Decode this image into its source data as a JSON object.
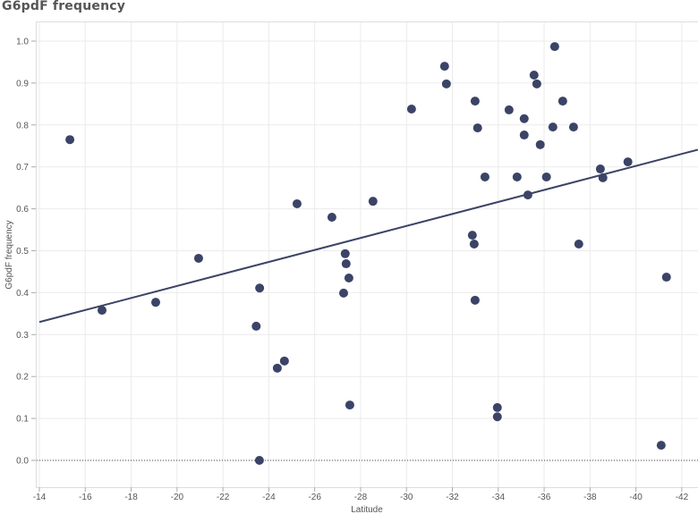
{
  "chart_data": {
    "type": "scatter",
    "title": "G6pdF frequency",
    "xlabel": "Latitude",
    "ylabel": "G6pdF frequency",
    "xlim": [
      -14,
      -42
    ],
    "ylim": [
      0,
      1.0
    ],
    "xticks": [
      "-14",
      "-16",
      "-18",
      "-20",
      "-22",
      "-24",
      "-26",
      "-28",
      "-30",
      "-32",
      "-34",
      "-36",
      "-38",
      "-40",
      "-42"
    ],
    "yticks": [
      "0.0",
      "0.1",
      "0.2",
      "0.3",
      "0.4",
      "0.5",
      "0.6",
      "0.7",
      "0.8",
      "0.9",
      "1.0"
    ],
    "grid": true,
    "points": [
      [
        -15.33,
        0.765
      ],
      [
        -16.73,
        0.358
      ],
      [
        -19.07,
        0.377
      ],
      [
        -20.94,
        0.482
      ],
      [
        -23.6,
        0.411
      ],
      [
        -23.45,
        0.32
      ],
      [
        -23.59,
        0.0
      ],
      [
        -24.37,
        0.22
      ],
      [
        -24.68,
        0.237
      ],
      [
        -25.23,
        0.612
      ],
      [
        -26.75,
        0.58
      ],
      [
        -27.33,
        0.493
      ],
      [
        -27.37,
        0.469
      ],
      [
        -27.49,
        0.435
      ],
      [
        -27.26,
        0.399
      ],
      [
        -27.53,
        0.132
      ],
      [
        -28.54,
        0.618
      ],
      [
        -30.22,
        0.838
      ],
      [
        -31.66,
        0.94
      ],
      [
        -31.74,
        0.898
      ],
      [
        -32.87,
        0.537
      ],
      [
        -32.95,
        0.516
      ],
      [
        -32.99,
        0.382
      ],
      [
        -32.99,
        0.857
      ],
      [
        -33.1,
        0.793
      ],
      [
        -33.42,
        0.676
      ],
      [
        -33.96,
        0.126
      ],
      [
        -33.96,
        0.104
      ],
      [
        -34.47,
        0.836
      ],
      [
        -34.82,
        0.676
      ],
      [
        -35.13,
        0.815
      ],
      [
        -35.13,
        0.776
      ],
      [
        -35.29,
        0.633
      ],
      [
        -35.56,
        0.919
      ],
      [
        -35.68,
        0.898
      ],
      [
        -35.83,
        0.753
      ],
      [
        -36.1,
        0.676
      ],
      [
        -36.38,
        0.795
      ],
      [
        -36.46,
        0.987
      ],
      [
        -36.81,
        0.857
      ],
      [
        -37.28,
        0.795
      ],
      [
        -37.51,
        0.516
      ],
      [
        -38.45,
        0.695
      ],
      [
        -38.56,
        0.674
      ],
      [
        -39.65,
        0.712
      ],
      [
        -41.1,
        0.036
      ],
      [
        -41.33,
        0.437
      ]
    ],
    "trendline": {
      "type": "linear",
      "points": [
        [
          -14,
          0.33
        ],
        [
          -42.7,
          0.741
        ]
      ]
    },
    "reference_line": {
      "y": 0.0,
      "style": "dotted"
    },
    "colors": {
      "points": "#3b4466",
      "trend": "#3b4466",
      "grid": "#ebebeb"
    }
  }
}
